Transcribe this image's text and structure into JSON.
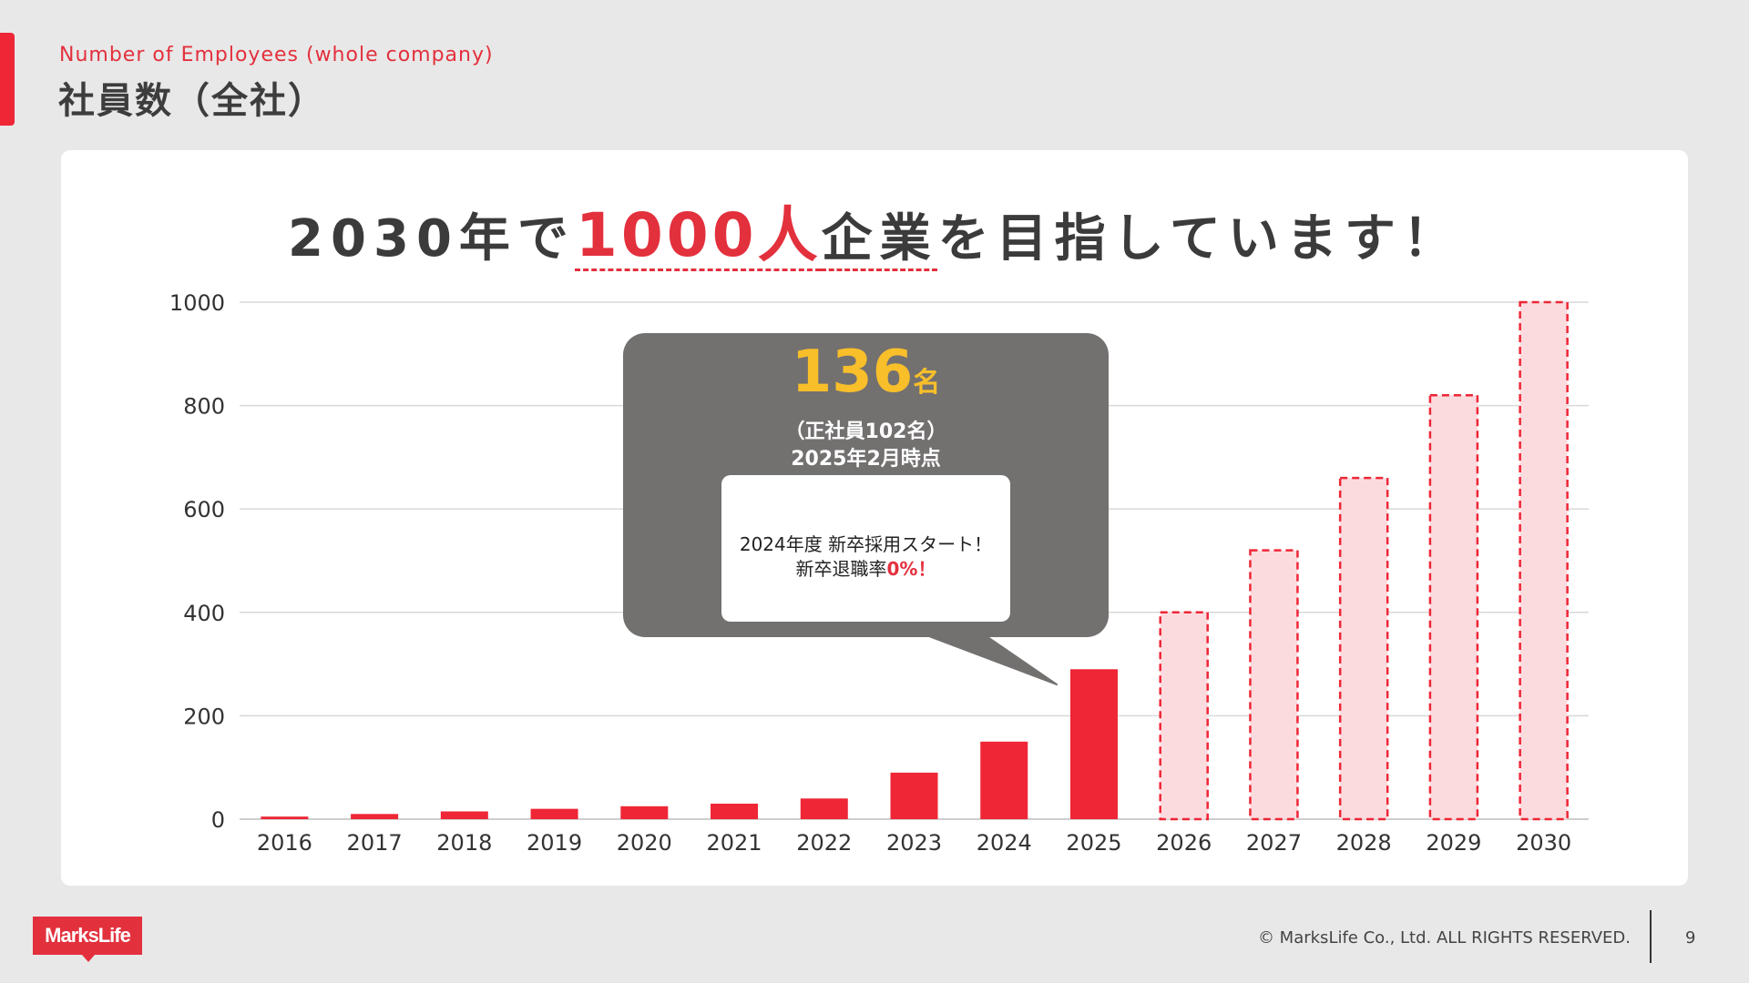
{
  "slide": {
    "title_en": "Number of Employees (whole company)",
    "title_ja": "社員数（全社）"
  },
  "headline": {
    "part1": "2030年で",
    "part2": "1000人",
    "part3": "企業",
    "part4": "を目指しています！"
  },
  "callout": {
    "value": "136",
    "unit": "名",
    "line1": "（正社員102名）",
    "line2": "2025年2月時点",
    "note_line1": "2024年度 新卒採用スタート！",
    "note_line2_prefix": "新卒退職率",
    "note_line2_highlight": "0%！"
  },
  "footer": {
    "logo": "MarksLife",
    "copyright": "© MarksLife Co., Ltd. ALL RIGHTS RESERVED.",
    "page": "9"
  },
  "colors": {
    "accent": "#ee2636",
    "target_fill": "#fcdbdf",
    "callout_bg": "#737070",
    "callout_value": "#f8bf2a"
  },
  "chart_data": {
    "type": "bar",
    "categories": [
      "2016",
      "2017",
      "2018",
      "2019",
      "2020",
      "2021",
      "2022",
      "2023",
      "2024",
      "2025",
      "2026",
      "2027",
      "2028",
      "2029",
      "2030"
    ],
    "values": [
      5,
      10,
      15,
      20,
      25,
      30,
      40,
      90,
      150,
      290,
      400,
      520,
      660,
      820,
      1000
    ],
    "styles": [
      "actual",
      "actual",
      "actual",
      "actual",
      "actual",
      "actual",
      "actual",
      "actual",
      "actual",
      "actual",
      "target",
      "target",
      "target",
      "target",
      "target"
    ],
    "yticks": [
      0,
      200,
      400,
      600,
      800,
      1000
    ],
    "ylim": [
      0,
      1000
    ],
    "grid": true,
    "xlabel": "",
    "ylabel": ""
  }
}
